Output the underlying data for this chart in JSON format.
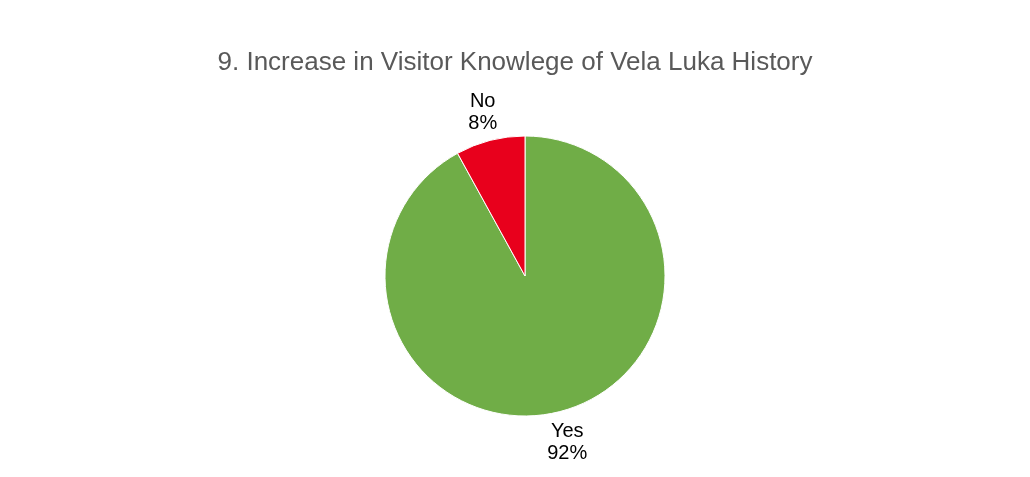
{
  "chart_data": {
    "type": "pie",
    "title": "9. Increase in Visitor Knowlege of Vela Luka History",
    "categories": [
      "Yes",
      "No"
    ],
    "values": [
      92,
      8
    ],
    "colors": [
      "#70ad47",
      "#e8001c"
    ],
    "value_labels": [
      "92%",
      "8%"
    ],
    "legend": false
  }
}
